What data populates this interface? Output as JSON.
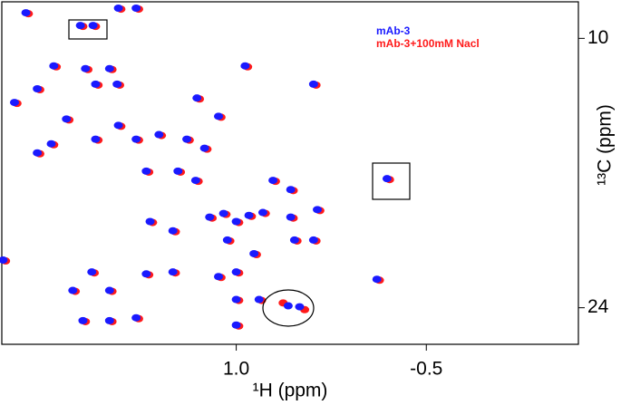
{
  "chart_data": {
    "type": "scatter",
    "x_label": "¹H (ppm)",
    "y_label": "¹³C (ppm)",
    "xlim": [
      2.85,
      -1.7
    ],
    "ylim": [
      8.1,
      25.9
    ],
    "xticks": [
      {
        "value": 1,
        "label": "1.0"
      },
      -0.5
    ],
    "yticks": [
      10,
      24
    ],
    "legend": "top-right",
    "series": [
      {
        "name": "mAb-3",
        "color": "#1a1aff",
        "x": [
          2.66,
          2.23,
          2.13,
          1.93,
          1.79,
          2.44,
          2.19,
          2.0,
          2.11,
          1.94,
          2.57,
          2.75,
          2.34,
          2.11,
          1.93,
          2.57,
          2.46,
          1.79,
          1.39,
          1.31,
          0.93,
          0.39,
          1.14,
          1.25,
          1.71,
          1.46,
          1.32,
          0.71,
          0.57,
          -0.19,
          1.21,
          1.1,
          1.0,
          0.9,
          0.79,
          0.57,
          0.36,
          1.68,
          1.5,
          1.07,
          0.86,
          0.54,
          0.39,
          2.84,
          2.14,
          1.71,
          1.5,
          1.14,
          1.0,
          2.29,
          2.0,
          1.0,
          0.82,
          0.59,
          0.5,
          2.21,
          2.0,
          1.79,
          1.0,
          -0.11,
          1.61
        ],
        "y": [
          8.67,
          9.33,
          9.33,
          8.43,
          8.43,
          11.43,
          11.57,
          11.57,
          12.38,
          12.38,
          12.62,
          13.33,
          14.19,
          15.24,
          14.52,
          15.95,
          15.48,
          15.24,
          15.24,
          13.1,
          11.43,
          12.38,
          14.05,
          15.71,
          16.9,
          16.9,
          17.38,
          17.38,
          17.86,
          17.29,
          19.29,
          19.1,
          19.52,
          19.2,
          19.05,
          19.29,
          18.9,
          19.52,
          20.0,
          20.48,
          21.19,
          20.48,
          20.48,
          21.52,
          22.14,
          22.24,
          22.14,
          22.38,
          22.14,
          23.1,
          23.1,
          23.57,
          23.57,
          23.9,
          23.95,
          24.67,
          24.67,
          24.52,
          24.9,
          22.52,
          15.0
        ]
      },
      {
        "name": "mAb-3+100mM Nacl",
        "color": "#ff1a1a",
        "x": [
          2.64,
          2.21,
          2.11,
          1.91,
          1.77,
          2.42,
          2.17,
          1.98,
          2.09,
          1.92,
          2.55,
          2.73,
          2.32,
          2.09,
          1.91,
          2.55,
          2.44,
          1.77,
          1.37,
          1.29,
          0.91,
          0.37,
          1.12,
          1.23,
          1.69,
          1.44,
          1.3,
          0.69,
          0.55,
          -0.21,
          1.19,
          1.08,
          0.98,
          0.88,
          0.77,
          0.55,
          0.34,
          1.66,
          1.48,
          1.05,
          0.84,
          0.52,
          0.37,
          2.82,
          2.12,
          1.69,
          1.48,
          1.12,
          0.98,
          2.27,
          1.98,
          0.98,
          0.8,
          0.63,
          0.46,
          2.19,
          1.98,
          1.77,
          0.98,
          -0.13,
          1.59
        ],
        "y": [
          8.72,
          9.38,
          9.38,
          8.48,
          8.48,
          11.48,
          11.62,
          11.62,
          12.43,
          12.43,
          12.67,
          13.38,
          14.24,
          15.29,
          14.57,
          16.0,
          15.53,
          15.29,
          15.29,
          13.15,
          11.48,
          12.43,
          14.1,
          15.76,
          16.95,
          16.95,
          17.43,
          17.43,
          17.91,
          17.34,
          19.34,
          19.15,
          19.57,
          19.25,
          19.1,
          19.34,
          18.95,
          19.57,
          20.05,
          20.53,
          21.24,
          20.53,
          20.53,
          21.57,
          22.19,
          22.29,
          22.19,
          22.43,
          22.19,
          23.15,
          23.15,
          23.62,
          23.62,
          23.75,
          24.1,
          24.72,
          24.72,
          24.57,
          24.95,
          22.57,
          15.05
        ]
      }
    ]
  }
}
